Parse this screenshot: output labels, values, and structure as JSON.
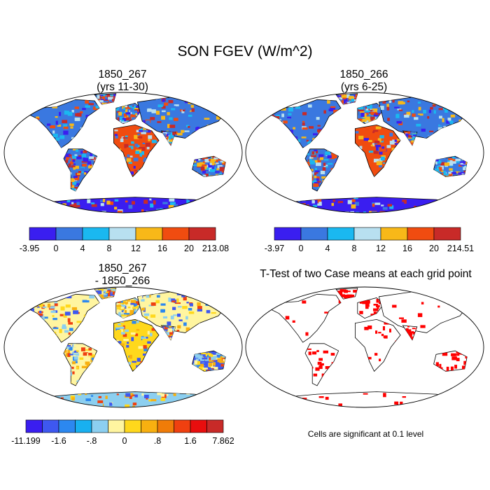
{
  "title": "SON FGEV (W/m^2)",
  "panels": {
    "p1": {
      "line1": "1850_267",
      "line2": "(yrs 11-30)"
    },
    "p2": {
      "line1": "1850_266",
      "line2": "(yrs 6-25)"
    },
    "p3": {
      "line1": "1850_267",
      "line2": "- 1850_266"
    },
    "p4": {
      "line1": "T-Test of two Case means at each grid point"
    }
  },
  "colorbars": {
    "cb1": {
      "colors": [
        "#3a1ef0",
        "#3a78e0",
        "#1ab8f0",
        "#b8e0f0",
        "#f8b818",
        "#f04c10",
        "#c82a28"
      ],
      "labels": [
        "-3.95",
        "0",
        "4",
        "8",
        "12",
        "16",
        "20",
        "213.08"
      ]
    },
    "cb2": {
      "colors": [
        "#3a1ef0",
        "#3a78e0",
        "#1ab8f0",
        "#b8e0f0",
        "#f8b818",
        "#f04c10",
        "#c82a28"
      ],
      "labels": [
        "-3.97",
        "0",
        "4",
        "8",
        "12",
        "16",
        "20",
        "214.51"
      ]
    },
    "cb3": {
      "colors": [
        "#3a1ef0",
        "#3e58f0",
        "#2c88f0",
        "#18b0f0",
        "#8ccff0",
        "#fff5a0",
        "#ffd81c",
        "#f8b010",
        "#f07c08",
        "#f04010",
        "#e80e0e",
        "#c82a28"
      ],
      "labels": [
        "-11.199",
        "-1.6",
        "-.8",
        "0",
        ".8",
        "1.6",
        "7.862"
      ]
    }
  },
  "note": "Cells are significant at 0.1 level"
}
